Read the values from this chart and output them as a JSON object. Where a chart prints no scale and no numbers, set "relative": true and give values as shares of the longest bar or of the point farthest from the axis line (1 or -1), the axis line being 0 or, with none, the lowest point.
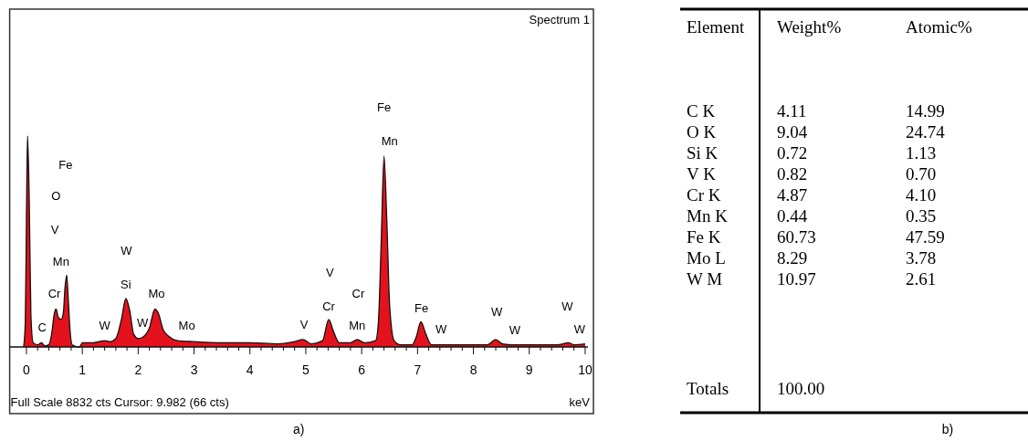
{
  "chart_data": [
    {
      "type": "area",
      "title": "Spectrum 1",
      "xlabel": "keV",
      "relative": true,
      "color": "#e3121c",
      "grid": false,
      "x": [
        -0.05,
        -0.02,
        0,
        0.02,
        0.05,
        0.08,
        0.12,
        0.2,
        0.27,
        0.33,
        0.4,
        0.45,
        0.5,
        0.53,
        0.57,
        0.62,
        0.66,
        0.69,
        0.72,
        0.75,
        0.78,
        0.82,
        0.95,
        1.0,
        1.2,
        1.4,
        1.5,
        1.6,
        1.7,
        1.78,
        1.85,
        1.92,
        2.0,
        2.1,
        2.2,
        2.3,
        2.36,
        2.45,
        2.55,
        2.7,
        3.0,
        3.5,
        4.0,
        4.5,
        4.8,
        4.95,
        5.1,
        5.3,
        5.41,
        5.5,
        5.6,
        5.8,
        5.92,
        6.05,
        6.25,
        6.3,
        6.35,
        6.4,
        6.45,
        6.5,
        6.58,
        6.7,
        6.9,
        6.98,
        7.06,
        7.15,
        7.25,
        7.5,
        8.0,
        8.25,
        8.4,
        8.52,
        8.7,
        9.0,
        9.5,
        9.7,
        9.8,
        10.0
      ],
      "values": [
        0,
        0.12,
        0.6,
        1,
        0.7,
        0.15,
        0.02,
        0.01,
        0.02,
        0.005,
        0.01,
        0.06,
        0.16,
        0.18,
        0.14,
        0.13,
        0.16,
        0.28,
        0.34,
        0.22,
        0.08,
        0.01,
        0,
        0.02,
        0.02,
        0.03,
        0.025,
        0.04,
        0.13,
        0.23,
        0.17,
        0.06,
        0.04,
        0.05,
        0.09,
        0.18,
        0.16,
        0.08,
        0.05,
        0.03,
        0.025,
        0.02,
        0.02,
        0.015,
        0.025,
        0.035,
        0.015,
        0.03,
        0.13,
        0.07,
        0.02,
        0.02,
        0.035,
        0.02,
        0.03,
        0.12,
        0.5,
        0.905,
        0.6,
        0.2,
        0.03,
        0.01,
        0.01,
        0.05,
        0.12,
        0.06,
        0.01,
        0.01,
        0.01,
        0.01,
        0.035,
        0.015,
        0.01,
        0.01,
        0.01,
        0.02,
        0.01,
        0.015
      ],
      "xlim": [
        -0.3,
        10.05
      ],
      "xticks": [
        0,
        {
          "value": 0.2,
          "label": null
        },
        {
          "value": 0.4,
          "label": null
        },
        {
          "value": 0.6,
          "label": null
        },
        {
          "value": 0.8,
          "label": null
        },
        1,
        {
          "value": 1.2,
          "label": null
        },
        {
          "value": 1.4,
          "label": null
        },
        {
          "value": 1.6,
          "label": null
        },
        {
          "value": 1.8,
          "label": null
        },
        2,
        {
          "value": 2.2,
          "label": null
        },
        {
          "value": 2.4,
          "label": null
        },
        {
          "value": 2.6,
          "label": null
        },
        {
          "value": 2.8,
          "label": null
        },
        3,
        {
          "value": 3.2,
          "label": null
        },
        {
          "value": 3.4,
          "label": null
        },
        {
          "value": 3.6,
          "label": null
        },
        {
          "value": 3.8,
          "label": null
        },
        4,
        {
          "value": 4.2,
          "label": null
        },
        {
          "value": 4.4,
          "label": null
        },
        {
          "value": 4.6,
          "label": null
        },
        {
          "value": 4.8,
          "label": null
        },
        5,
        {
          "value": 5.2,
          "label": null
        },
        {
          "value": 5.4,
          "label": null
        },
        {
          "value": 5.6,
          "label": null
        },
        {
          "value": 5.8,
          "label": null
        },
        6,
        {
          "value": 6.2,
          "label": null
        },
        {
          "value": 6.4,
          "label": null
        },
        {
          "value": 6.6,
          "label": null
        },
        {
          "value": 6.8,
          "label": null
        },
        7,
        {
          "value": 7.2,
          "label": null
        },
        {
          "value": 7.4,
          "label": null
        },
        {
          "value": 7.6,
          "label": null
        },
        {
          "value": 7.8,
          "label": null
        },
        8,
        {
          "value": 8.2,
          "label": null
        },
        {
          "value": 8.4,
          "label": null
        },
        {
          "value": 8.6,
          "label": null
        },
        {
          "value": 8.8,
          "label": null
        },
        9,
        {
          "value": 9.2,
          "label": null
        },
        {
          "value": 9.4,
          "label": null
        },
        {
          "value": 9.6,
          "label": null
        },
        {
          "value": 9.8,
          "label": null
        },
        10
      ],
      "annotations": [
        "C",
        "Cr",
        "Mn",
        "V",
        "O",
        "Fe",
        "W",
        "Si",
        "W",
        "W",
        "Mo",
        "Mo",
        "V",
        "Cr",
        "V",
        "Mn",
        "Cr",
        "Mn",
        "Fe",
        "Fe",
        "W",
        "W",
        "W",
        "W",
        "W",
        "Full Scale 8832 cts Cursor: 9.982  (66 cts)",
        "a)"
      ]
    },
    {
      "type": "other",
      "xlabel": "Element",
      "data_labels": true,
      "categories": [
        "C K",
        "O K",
        "Si K",
        "V K",
        "Cr K",
        "Mn K",
        "Fe K",
        "Mo L",
        "W M"
      ],
      "series": [
        {
          "name": "Weight%",
          "values": [
            4.11,
            9.04,
            0.72,
            0.82,
            4.87,
            0.44,
            60.73,
            8.29,
            10.97
          ]
        },
        {
          "name": "Atomic%",
          "values": [
            14.99,
            24.74,
            1.13,
            0.7,
            4.1,
            0.35,
            47.59,
            3.78,
            2.61
          ],
          "value_labels": [
            "14.99",
            "24.74",
            "1.13",
            "0.70",
            "4.10",
            "0.35",
            "47.59",
            "3.78",
            "2.61"
          ]
        }
      ],
      "annotations": [
        "Totals",
        "100.00",
        "b)"
      ]
    }
  ]
}
